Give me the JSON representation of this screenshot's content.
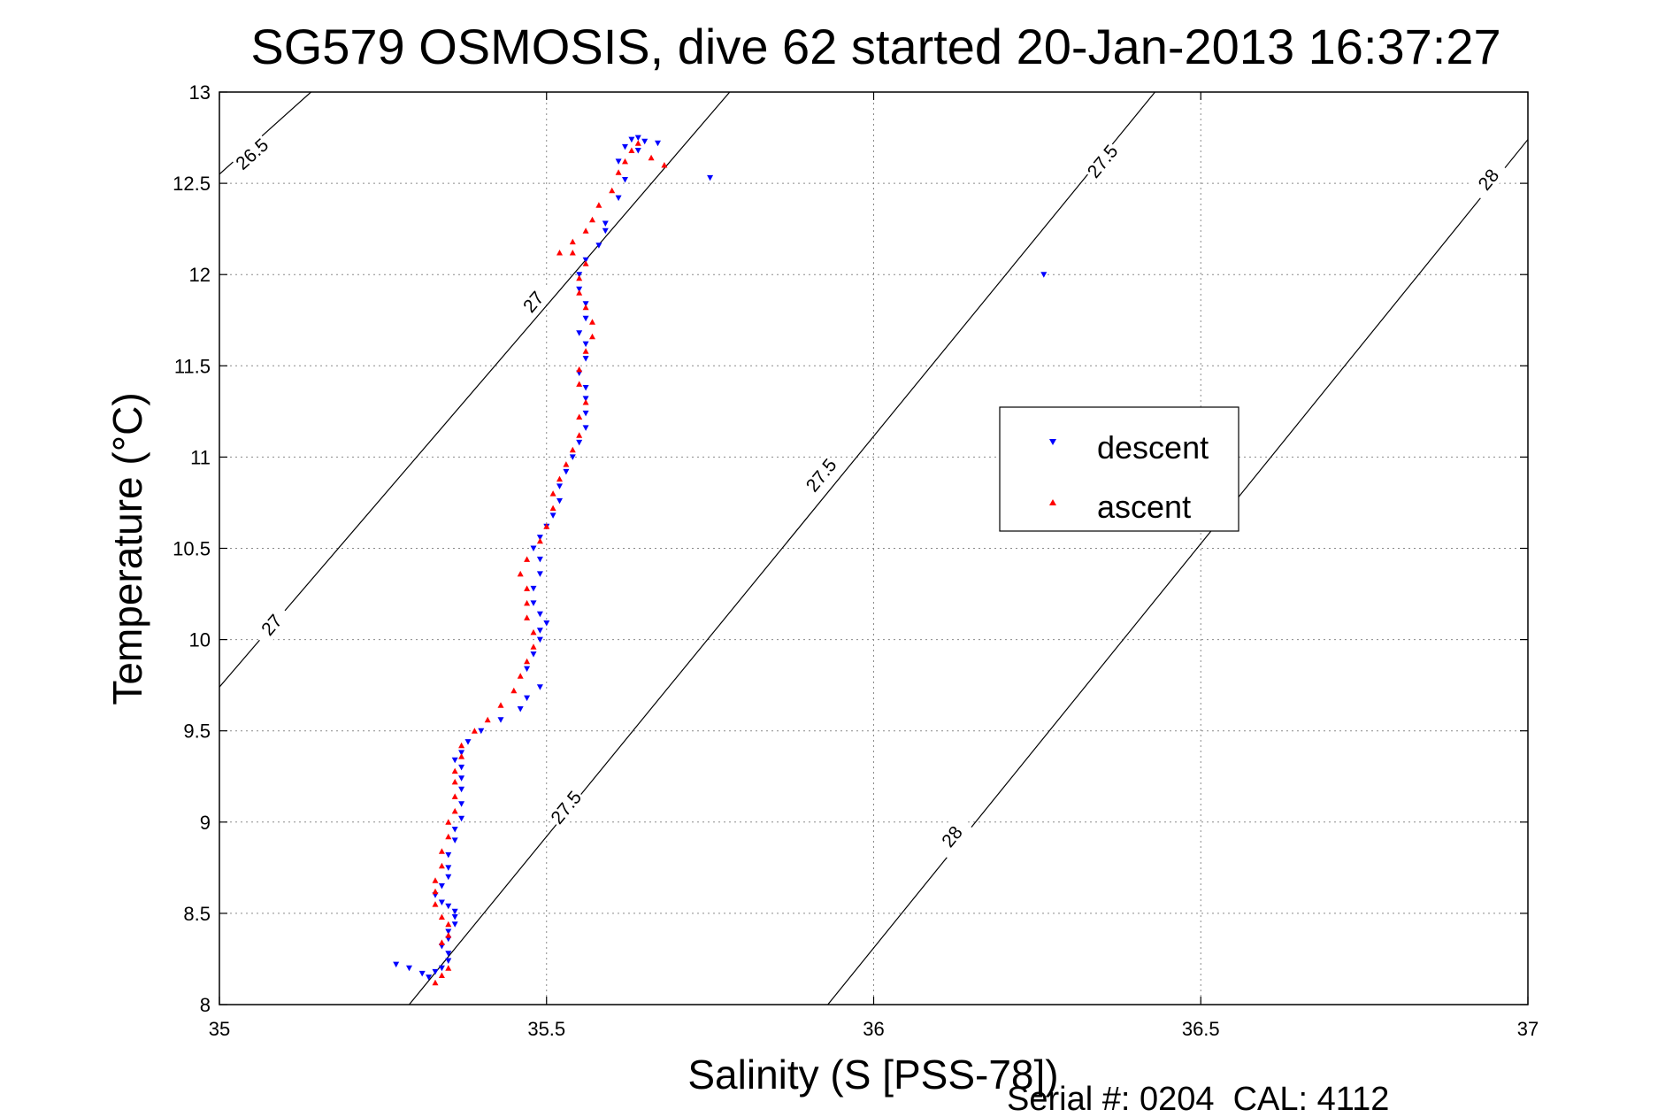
{
  "chart_data": {
    "type": "scatter",
    "title": "SG579 OSMOSIS, dive 62 started 20-Jan-2013 16:37:27",
    "xlabel": "Salinity (S [PSS-78])",
    "ylabel": "Temperature (°C)",
    "xlim": [
      35,
      37
    ],
    "ylim": [
      8,
      13
    ],
    "xticks": [
      "35",
      "35.5",
      "36",
      "36.5",
      "37"
    ],
    "yticks": [
      "8",
      "8.5",
      "9",
      "9.5",
      "10",
      "10.5",
      "11",
      "11.5",
      "12",
      "12.5",
      "13"
    ],
    "grid": true,
    "legend_position": "right-center",
    "footer": "Serial #: 0204  CAL: 4112",
    "series": [
      {
        "name": "descent",
        "color": "#0000ff",
        "marker": "triangle-down",
        "points": [
          [
            35.27,
            8.22
          ],
          [
            35.29,
            8.2
          ],
          [
            35.31,
            8.17
          ],
          [
            35.32,
            8.15
          ],
          [
            35.33,
            8.18
          ],
          [
            35.34,
            8.2
          ],
          [
            35.35,
            8.24
          ],
          [
            35.35,
            8.28
          ],
          [
            35.34,
            8.32
          ],
          [
            35.35,
            8.36
          ],
          [
            35.35,
            8.4
          ],
          [
            35.36,
            8.44
          ],
          [
            35.36,
            8.48
          ],
          [
            35.36,
            8.51
          ],
          [
            35.35,
            8.54
          ],
          [
            35.34,
            8.56
          ],
          [
            35.33,
            8.6
          ],
          [
            35.34,
            8.65
          ],
          [
            35.35,
            8.7
          ],
          [
            35.35,
            8.75
          ],
          [
            35.35,
            8.82
          ],
          [
            35.36,
            8.9
          ],
          [
            35.36,
            8.96
          ],
          [
            35.37,
            9.02
          ],
          [
            35.37,
            9.1
          ],
          [
            35.37,
            9.18
          ],
          [
            35.37,
            9.24
          ],
          [
            35.37,
            9.3
          ],
          [
            35.36,
            9.34
          ],
          [
            35.37,
            9.38
          ],
          [
            35.38,
            9.44
          ],
          [
            35.4,
            9.5
          ],
          [
            35.43,
            9.56
          ],
          [
            35.46,
            9.62
          ],
          [
            35.47,
            9.68
          ],
          [
            35.49,
            9.74
          ],
          [
            35.47,
            9.84
          ],
          [
            35.48,
            9.92
          ],
          [
            35.49,
            10.0
          ],
          [
            35.49,
            10.05
          ],
          [
            35.5,
            10.09
          ],
          [
            35.49,
            10.14
          ],
          [
            35.48,
            10.2
          ],
          [
            35.48,
            10.28
          ],
          [
            35.49,
            10.36
          ],
          [
            35.49,
            10.44
          ],
          [
            35.48,
            10.5
          ],
          [
            35.49,
            10.56
          ],
          [
            35.5,
            10.62
          ],
          [
            35.51,
            10.68
          ],
          [
            35.52,
            10.76
          ],
          [
            35.52,
            10.84
          ],
          [
            35.53,
            10.92
          ],
          [
            35.54,
            11.0
          ],
          [
            35.55,
            11.08
          ],
          [
            35.56,
            11.16
          ],
          [
            35.56,
            11.24
          ],
          [
            35.56,
            11.32
          ],
          [
            35.56,
            11.38
          ],
          [
            35.55,
            11.46
          ],
          [
            35.56,
            11.54
          ],
          [
            35.56,
            11.62
          ],
          [
            35.55,
            11.68
          ],
          [
            35.56,
            11.76
          ],
          [
            35.56,
            11.84
          ],
          [
            35.55,
            11.92
          ],
          [
            35.55,
            12.0
          ],
          [
            35.56,
            12.08
          ],
          [
            35.58,
            12.16
          ],
          [
            35.59,
            12.24
          ],
          [
            35.59,
            12.28
          ],
          [
            35.61,
            12.42
          ],
          [
            35.62,
            12.52
          ],
          [
            35.61,
            12.62
          ],
          [
            35.62,
            12.7
          ],
          [
            35.63,
            12.74
          ],
          [
            35.64,
            12.75
          ],
          [
            35.65,
            12.73
          ],
          [
            35.64,
            12.68
          ],
          [
            35.67,
            12.72
          ],
          [
            35.75,
            12.53
          ],
          [
            36.26,
            12.0
          ]
        ]
      },
      {
        "name": "ascent",
        "color": "#ff0000",
        "marker": "triangle-up",
        "points": [
          [
            35.33,
            8.12
          ],
          [
            35.34,
            8.16
          ],
          [
            35.35,
            8.2
          ],
          [
            35.34,
            8.34
          ],
          [
            35.35,
            8.38
          ],
          [
            35.35,
            8.44
          ],
          [
            35.34,
            8.48
          ],
          [
            35.33,
            8.55
          ],
          [
            35.33,
            8.62
          ],
          [
            35.33,
            8.68
          ],
          [
            35.34,
            8.76
          ],
          [
            35.34,
            8.84
          ],
          [
            35.35,
            8.92
          ],
          [
            35.35,
            9.0
          ],
          [
            35.36,
            9.06
          ],
          [
            35.36,
            9.14
          ],
          [
            35.36,
            9.22
          ],
          [
            35.36,
            9.28
          ],
          [
            35.37,
            9.36
          ],
          [
            35.37,
            9.42
          ],
          [
            35.39,
            9.5
          ],
          [
            35.41,
            9.56
          ],
          [
            35.43,
            9.64
          ],
          [
            35.45,
            9.72
          ],
          [
            35.46,
            9.8
          ],
          [
            35.47,
            9.88
          ],
          [
            35.48,
            9.96
          ],
          [
            35.48,
            10.04
          ],
          [
            35.47,
            10.12
          ],
          [
            35.47,
            10.2
          ],
          [
            35.47,
            10.28
          ],
          [
            35.46,
            10.36
          ],
          [
            35.47,
            10.44
          ],
          [
            35.49,
            10.54
          ],
          [
            35.5,
            10.62
          ],
          [
            35.51,
            10.72
          ],
          [
            35.51,
            10.8
          ],
          [
            35.52,
            10.88
          ],
          [
            35.53,
            10.96
          ],
          [
            35.54,
            11.04
          ],
          [
            35.55,
            11.12
          ],
          [
            35.55,
            11.22
          ],
          [
            35.56,
            11.3
          ],
          [
            35.55,
            11.4
          ],
          [
            35.55,
            11.48
          ],
          [
            35.56,
            11.58
          ],
          [
            35.57,
            11.66
          ],
          [
            35.57,
            11.74
          ],
          [
            35.56,
            11.82
          ],
          [
            35.55,
            11.9
          ],
          [
            35.55,
            11.98
          ],
          [
            35.56,
            12.06
          ],
          [
            35.54,
            12.12
          ],
          [
            35.52,
            12.12
          ],
          [
            35.54,
            12.18
          ],
          [
            35.56,
            12.24
          ],
          [
            35.57,
            12.3
          ],
          [
            35.58,
            12.38
          ],
          [
            35.6,
            12.46
          ],
          [
            35.61,
            12.56
          ],
          [
            35.62,
            12.62
          ],
          [
            35.63,
            12.68
          ],
          [
            35.64,
            12.72
          ],
          [
            35.66,
            12.64
          ],
          [
            35.68,
            12.6
          ]
        ]
      }
    ],
    "contours": [
      {
        "label": "26.5",
        "path": [
          [
            35.0,
            12.55
          ],
          [
            35.14,
            13.0
          ]
        ]
      },
      {
        "label": "27",
        "path": [
          [
            35.0,
            9.74
          ],
          [
            35.78,
            13.0
          ]
        ]
      },
      {
        "label": "27.5",
        "path": [
          [
            35.29,
            8.0
          ],
          [
            36.43,
            13.0
          ]
        ]
      },
      {
        "label": "28",
        "path": [
          [
            35.93,
            8.0
          ],
          [
            37.0,
            12.74
          ]
        ]
      }
    ],
    "contour_labels": [
      {
        "text": "26.5",
        "at": [
          35.05,
          12.66
        ]
      },
      {
        "text": "27",
        "at": [
          35.48,
          11.85
        ]
      },
      {
        "text": "27",
        "at": [
          35.08,
          10.08
        ]
      },
      {
        "text": "27.5",
        "at": [
          36.35,
          12.62
        ]
      },
      {
        "text": "27.5",
        "at": [
          35.92,
          10.9
        ]
      },
      {
        "text": "27.5",
        "at": [
          35.53,
          9.08
        ]
      },
      {
        "text": "28",
        "at": [
          36.94,
          12.52
        ]
      },
      {
        "text": "28",
        "at": [
          36.12,
          8.92
        ]
      }
    ]
  }
}
